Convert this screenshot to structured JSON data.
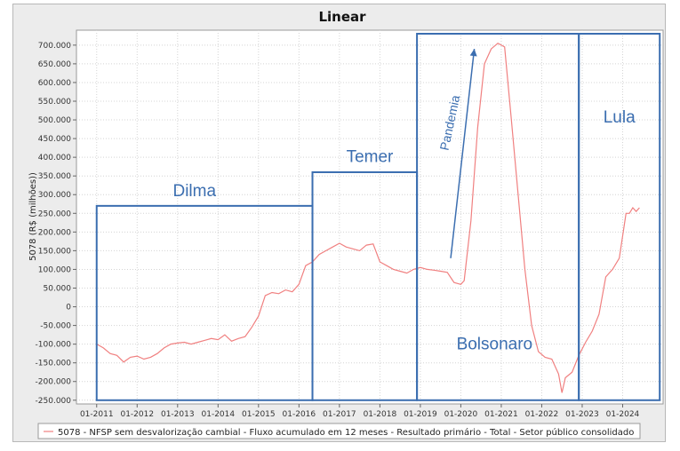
{
  "chart_data": {
    "type": "line",
    "title": "Linear",
    "ylabel": "5078 (R$ (milhões))",
    "ylim": [
      -260000,
      740000
    ],
    "yticks": [
      -250000,
      -200000,
      -150000,
      -100000,
      -50000,
      0,
      50000,
      100000,
      150000,
      200000,
      250000,
      300000,
      350000,
      400000,
      450000,
      500000,
      550000,
      600000,
      650000,
      700000
    ],
    "ytick_labels": [
      "-250.000",
      "-200.000",
      "-150.000",
      "-100.000",
      "-50.000",
      "0",
      "50.000",
      "100.000",
      "150.000",
      "200.000",
      "250.000",
      "300.000",
      "350.000",
      "400.000",
      "450.000",
      "500.000",
      "550.000",
      "600.000",
      "650.000",
      "700.000"
    ],
    "xlim": [
      "2010-07",
      "2025-01"
    ],
    "xticks": [
      "2011-01",
      "2012-01",
      "2013-01",
      "2014-01",
      "2015-01",
      "2016-01",
      "2017-01",
      "2018-01",
      "2019-01",
      "2020-01",
      "2021-01",
      "2022-01",
      "2023-01",
      "2024-01"
    ],
    "xtick_labels": [
      "01-2011",
      "01-2012",
      "01-2013",
      "01-2014",
      "01-2015",
      "01-2016",
      "01-2017",
      "01-2018",
      "01-2019",
      "01-2020",
      "01-2021",
      "01-2022",
      "01-2023",
      "01-2024"
    ],
    "grid": true,
    "legend_position": "bottom",
    "series": [
      {
        "name": "5078 - NFSP sem desvalorização cambial - Fluxo acumulado em 12 meses - Resultado primário - Total - Setor público consolidado",
        "color": "#f08080",
        "points": [
          [
            "2011-01",
            -100000
          ],
          [
            "2011-03",
            -110000
          ],
          [
            "2011-05",
            -125000
          ],
          [
            "2011-07",
            -130000
          ],
          [
            "2011-09",
            -148000
          ],
          [
            "2011-11",
            -135000
          ],
          [
            "2012-01",
            -132000
          ],
          [
            "2012-03",
            -140000
          ],
          [
            "2012-05",
            -135000
          ],
          [
            "2012-07",
            -125000
          ],
          [
            "2012-09",
            -110000
          ],
          [
            "2012-11",
            -100000
          ],
          [
            "2013-01",
            -97000
          ],
          [
            "2013-03",
            -95000
          ],
          [
            "2013-05",
            -100000
          ],
          [
            "2013-07",
            -95000
          ],
          [
            "2013-09",
            -90000
          ],
          [
            "2013-11",
            -85000
          ],
          [
            "2014-01",
            -88000
          ],
          [
            "2014-03",
            -75000
          ],
          [
            "2014-05",
            -92000
          ],
          [
            "2014-07",
            -85000
          ],
          [
            "2014-09",
            -80000
          ],
          [
            "2014-11",
            -55000
          ],
          [
            "2015-01",
            -25000
          ],
          [
            "2015-03",
            30000
          ],
          [
            "2015-05",
            38000
          ],
          [
            "2015-07",
            35000
          ],
          [
            "2015-09",
            45000
          ],
          [
            "2015-11",
            40000
          ],
          [
            "2016-01",
            60000
          ],
          [
            "2016-03",
            110000
          ],
          [
            "2016-05",
            120000
          ],
          [
            "2016-07",
            140000
          ],
          [
            "2016-09",
            150000
          ],
          [
            "2016-11",
            160000
          ],
          [
            "2017-01",
            170000
          ],
          [
            "2017-03",
            160000
          ],
          [
            "2017-05",
            155000
          ],
          [
            "2017-07",
            150000
          ],
          [
            "2017-09",
            165000
          ],
          [
            "2017-11",
            168000
          ],
          [
            "2018-01",
            120000
          ],
          [
            "2018-03",
            110000
          ],
          [
            "2018-05",
            100000
          ],
          [
            "2018-07",
            95000
          ],
          [
            "2018-09",
            90000
          ],
          [
            "2018-11",
            100000
          ],
          [
            "2019-01",
            105000
          ],
          [
            "2019-03",
            100000
          ],
          [
            "2019-05",
            98000
          ],
          [
            "2019-07",
            95000
          ],
          [
            "2019-09",
            92000
          ],
          [
            "2019-11",
            65000
          ],
          [
            "2020-01",
            60000
          ],
          [
            "2020-02",
            70000
          ],
          [
            "2020-04",
            230000
          ],
          [
            "2020-06",
            480000
          ],
          [
            "2020-08",
            650000
          ],
          [
            "2020-10",
            690000
          ],
          [
            "2020-12",
            705000
          ],
          [
            "2021-02",
            695000
          ],
          [
            "2021-04",
            500000
          ],
          [
            "2021-06",
            300000
          ],
          [
            "2021-08",
            100000
          ],
          [
            "2021-10",
            -50000
          ],
          [
            "2021-12",
            -120000
          ],
          [
            "2022-02",
            -135000
          ],
          [
            "2022-04",
            -140000
          ],
          [
            "2022-06",
            -180000
          ],
          [
            "2022-07",
            -230000
          ],
          [
            "2022-08",
            -190000
          ],
          [
            "2022-10",
            -175000
          ],
          [
            "2022-12",
            -130000
          ],
          [
            "2023-02",
            -95000
          ],
          [
            "2023-04",
            -65000
          ],
          [
            "2023-06",
            -20000
          ],
          [
            "2023-08",
            80000
          ],
          [
            "2023-10",
            100000
          ],
          [
            "2023-12",
            130000
          ],
          [
            "2024-02",
            250000
          ],
          [
            "2024-03",
            250000
          ],
          [
            "2024-04",
            265000
          ],
          [
            "2024-05",
            255000
          ],
          [
            "2024-06",
            265000
          ]
        ]
      }
    ],
    "annotations": {
      "eras": [
        {
          "label": "Dilma",
          "start": "2011-01",
          "end": "2016-05",
          "top": 270000
        },
        {
          "label": "Temer",
          "start": "2016-05",
          "end": "2018-12",
          "top": 360000
        },
        {
          "label": "Bolsonaro",
          "start": "2018-12",
          "end": "2022-12",
          "top": 740000
        },
        {
          "label": "Lula",
          "start": "2022-12",
          "end": "2024-12",
          "top": 740000
        }
      ],
      "event": {
        "label": "Pandemia",
        "from": [
          "2019-10",
          130000
        ],
        "to": [
          "2020-05",
          690000
        ]
      },
      "box_color": "#3b6eb0",
      "box_bottom": -250000
    }
  }
}
